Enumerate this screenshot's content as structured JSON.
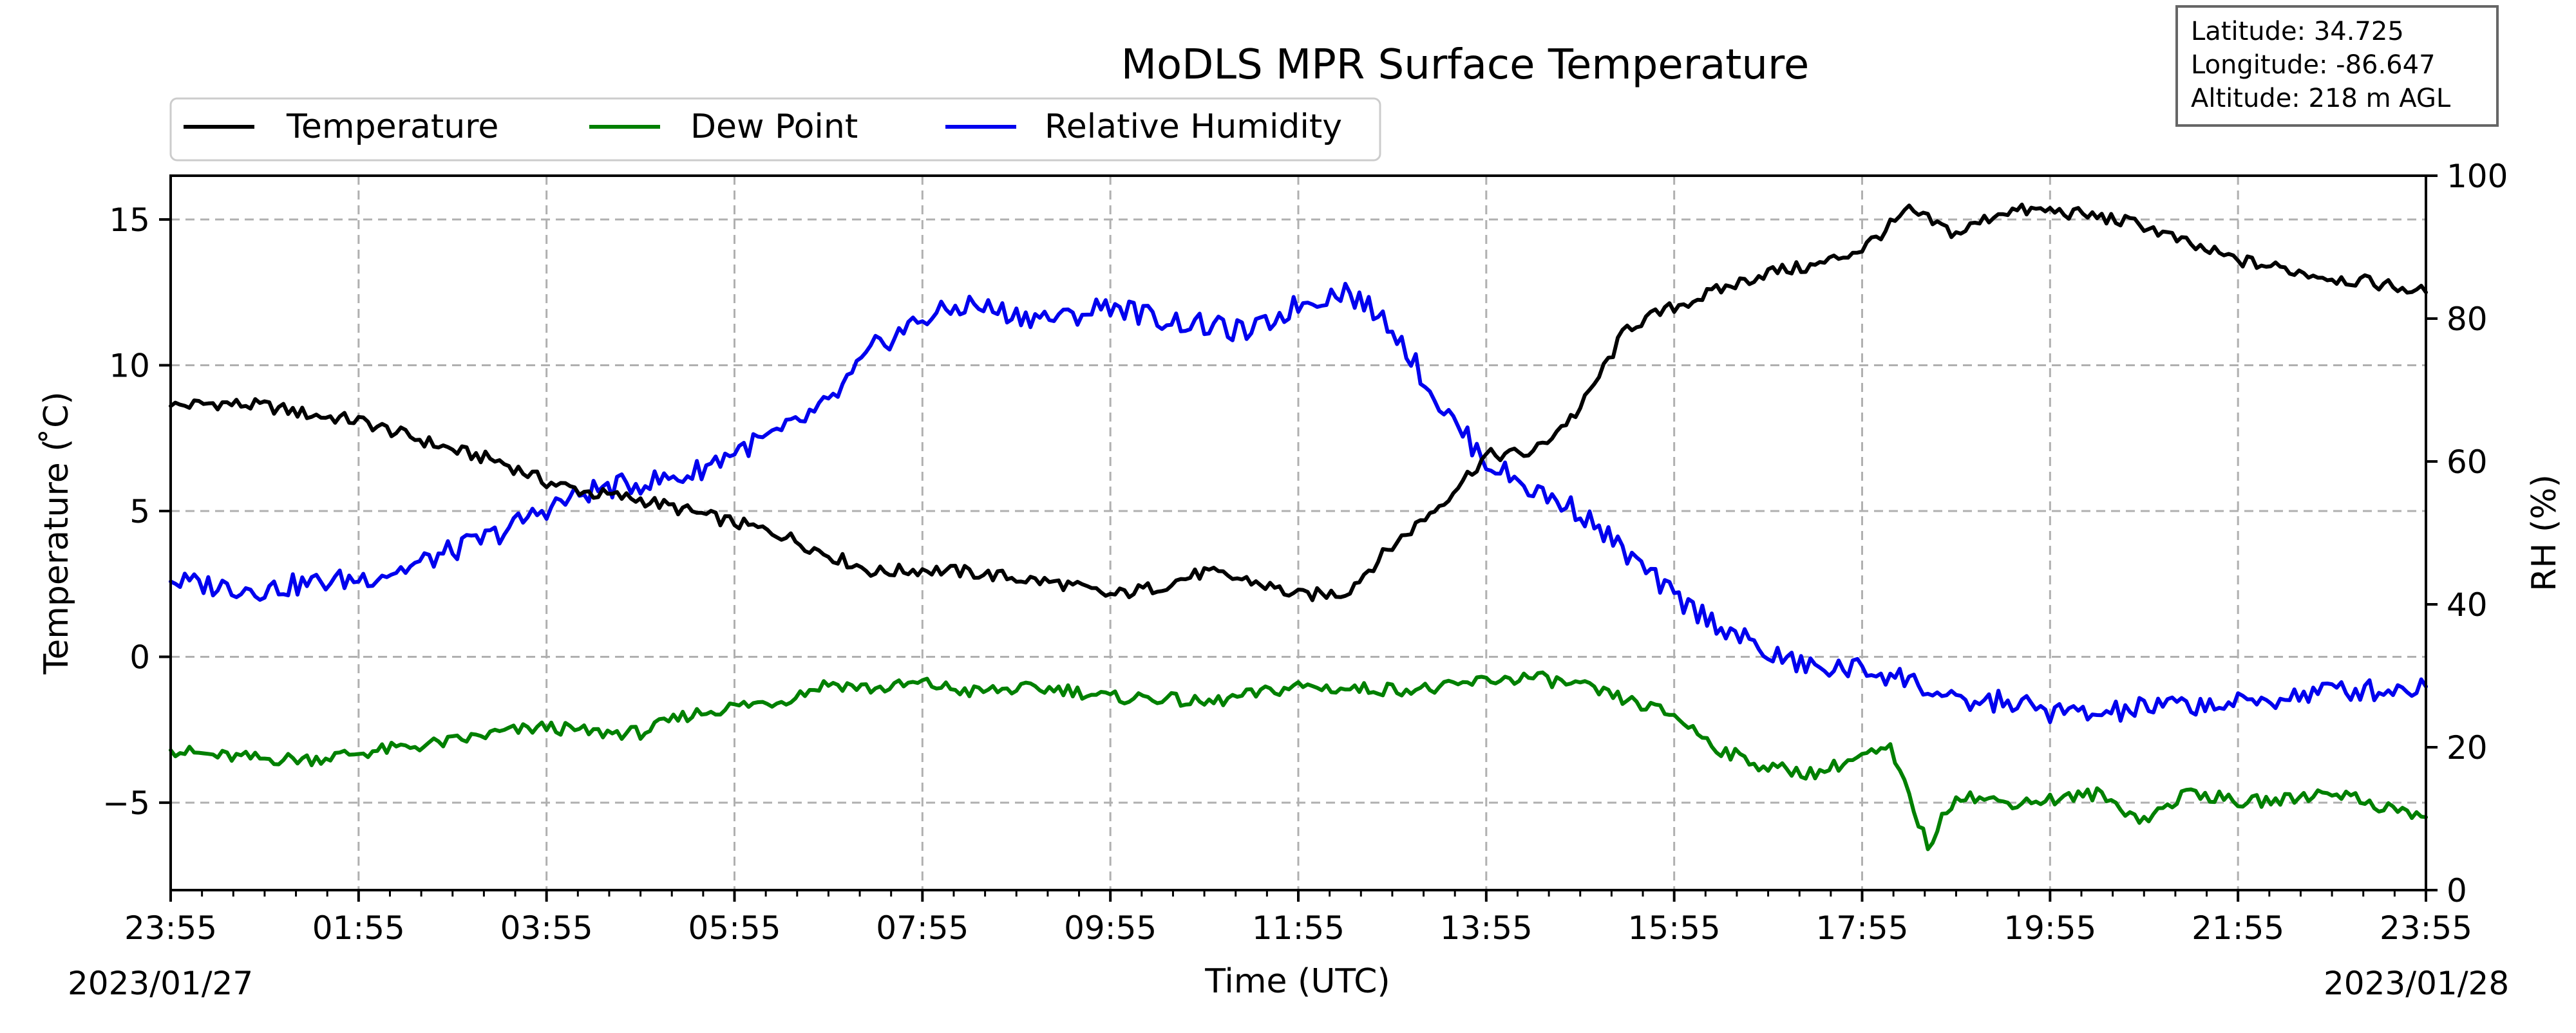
{
  "chart_data": {
    "type": "line",
    "title": "MoDLS MPR Surface Temperature",
    "xlabel": "Time (UTC)",
    "ylabel_left": "Temperature ($^\\circ$C)",
    "ylabel_left_display": "Temperature ( ̊C)",
    "ylabel_right": "RH (%)",
    "x_ticks": [
      "23:55",
      "01:55",
      "03:55",
      "05:55",
      "07:55",
      "09:55",
      "11:55",
      "13:55",
      "15:55",
      "17:55",
      "19:55",
      "21:55",
      "23:55"
    ],
    "date_start": "2023/01/27",
    "date_end": "2023/01/28",
    "xlim_hours": [
      0,
      24
    ],
    "ylim_left": [
      -8,
      16.5
    ],
    "yticks_left": [
      -5,
      0,
      5,
      10,
      15
    ],
    "ylim_right": [
      0,
      100
    ],
    "yticks_right": [
      0,
      20,
      40,
      60,
      80,
      100
    ],
    "grid": true,
    "legend_position": "top-left",
    "info_box": {
      "latitude": "Latitude: 34.725",
      "longitude": "Longitude: -86.647",
      "altitude": "Altitude: 218 m AGL"
    },
    "series": [
      {
        "name": "Temperature",
        "axis": "left",
        "color": "#000000",
        "x": [
          0.0,
          0.5,
          1.0,
          1.5,
          2.0,
          2.5,
          3.0,
          3.5,
          4.0,
          4.5,
          5.0,
          5.5,
          6.0,
          6.5,
          7.0,
          7.5,
          8.0,
          8.5,
          9.0,
          9.5,
          10.0,
          10.5,
          11.0,
          11.5,
          12.0,
          12.5,
          13.0,
          13.5,
          14.0,
          14.5,
          15.0,
          15.5,
          16.0,
          16.5,
          17.0,
          17.5,
          18.0,
          18.5,
          19.0,
          19.5,
          20.0,
          20.5,
          21.0,
          21.5,
          22.0,
          22.5,
          23.0,
          23.5,
          24.0
        ],
        "values": [
          8.6,
          8.7,
          8.6,
          8.3,
          8.1,
          7.6,
          7.1,
          6.7,
          6.0,
          5.6,
          5.4,
          5.0,
          4.6,
          4.2,
          3.5,
          2.9,
          3.0,
          2.9,
          2.7,
          2.5,
          2.1,
          2.4,
          2.9,
          2.6,
          2.1,
          2.2,
          3.8,
          5.2,
          6.9,
          7.0,
          8.5,
          11.3,
          12.0,
          12.6,
          13.2,
          13.4,
          14.0,
          15.3,
          14.5,
          15.3,
          15.3,
          15.1,
          14.8,
          14.1,
          13.6,
          13.3,
          13.0,
          12.8,
          12.5
        ]
      },
      {
        "name": "Dew Point",
        "axis": "left",
        "color": "#008000",
        "x": [
          0.0,
          0.5,
          1.0,
          1.5,
          2.0,
          2.5,
          3.0,
          3.5,
          4.0,
          4.5,
          5.0,
          5.5,
          6.0,
          6.5,
          7.0,
          7.5,
          8.0,
          8.5,
          9.0,
          9.5,
          10.0,
          10.5,
          11.0,
          11.5,
          12.0,
          12.5,
          13.0,
          13.5,
          14.0,
          14.5,
          15.0,
          15.5,
          16.0,
          16.5,
          17.0,
          17.5,
          18.0,
          18.3,
          18.5,
          18.7,
          19.0,
          19.5,
          20.0,
          20.5,
          21.0,
          21.5,
          22.0,
          22.5,
          23.0,
          23.5,
          24.0
        ],
        "values": [
          -3.2,
          -3.4,
          -3.5,
          -3.5,
          -3.3,
          -3.1,
          -2.9,
          -2.6,
          -2.4,
          -2.6,
          -2.6,
          -2.0,
          -1.7,
          -1.5,
          -0.9,
          -1.1,
          -0.9,
          -1.2,
          -1.1,
          -1.1,
          -1.4,
          -1.4,
          -1.6,
          -1.3,
          -1.0,
          -1.1,
          -1.1,
          -1.1,
          -0.8,
          -0.7,
          -1.0,
          -1.5,
          -2.0,
          -3.2,
          -3.8,
          -4.0,
          -3.4,
          -3.2,
          -4.8,
          -6.5,
          -4.7,
          -5.0,
          -4.9,
          -4.7,
          -5.6,
          -4.6,
          -5.0,
          -4.9,
          -4.6,
          -5.1,
          -5.5
        ]
      },
      {
        "name": "Relative Humidity",
        "axis": "right",
        "color": "#0000ee",
        "x": [
          0.0,
          0.5,
          1.0,
          1.5,
          2.0,
          2.5,
          3.0,
          3.5,
          4.0,
          4.5,
          5.0,
          5.5,
          6.0,
          6.5,
          7.0,
          7.5,
          8.0,
          8.5,
          9.0,
          9.5,
          10.0,
          10.5,
          11.0,
          11.5,
          12.0,
          12.5,
          13.0,
          13.5,
          14.0,
          14.5,
          15.0,
          15.5,
          16.0,
          16.5,
          17.0,
          17.5,
          18.0,
          18.5,
          19.0,
          19.5,
          20.0,
          20.5,
          21.0,
          21.5,
          22.0,
          22.5,
          23.0,
          23.5,
          24.0
        ],
        "values": [
          43.2,
          42.6,
          42.1,
          43.0,
          43.6,
          45.0,
          47.5,
          50.0,
          53.5,
          56.0,
          57.0,
          58.0,
          61.5,
          64.0,
          68.0,
          76.0,
          80.0,
          82.0,
          80.5,
          80.0,
          82.0,
          80.0,
          79.0,
          78.0,
          82.0,
          84.0,
          79.0,
          68.0,
          60.0,
          56.0,
          53.0,
          47.0,
          41.0,
          37.0,
          33.0,
          31.0,
          31.0,
          29.5,
          26.0,
          26.5,
          25.0,
          24.5,
          25.5,
          26.0,
          26.0,
          27.0,
          28.0,
          28.0,
          28.5
        ]
      }
    ]
  }
}
